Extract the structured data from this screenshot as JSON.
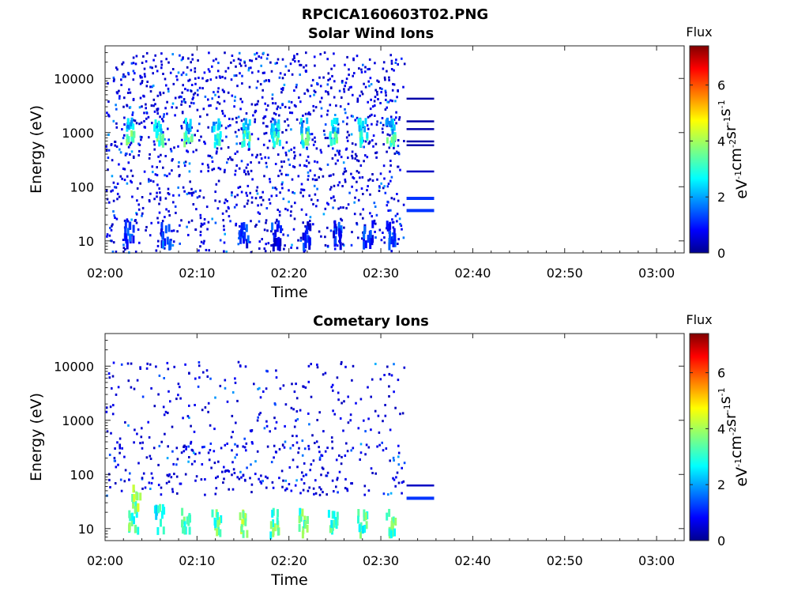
{
  "figure": {
    "title": "RPCICA160603T02.PNG"
  },
  "chart_data": [
    {
      "type": "heatmap",
      "title": "Solar Wind Ions",
      "xlabel": "Time",
      "ylabel": "Energy (eV)",
      "x_ticks": [
        "02:00",
        "02:10",
        "02:20",
        "02:30",
        "02:40",
        "02:50",
        "03:00"
      ],
      "x_range": [
        "02:00",
        "03:03"
      ],
      "y_scale": "log",
      "y_ticks": [
        10,
        100,
        1000,
        10000
      ],
      "y_tick_labels": [
        "10",
        "100",
        "1000",
        "10000"
      ],
      "y_range": [
        6,
        40000
      ],
      "colorbar": {
        "title": "Flux",
        "label": "eV-1cm-2sr-1s-1",
        "range": [
          0,
          7.4
        ],
        "ticks": [
          0,
          2,
          4,
          6
        ],
        "colormap": "jet"
      },
      "data_end_time": "02:32.5",
      "hot_spots": [
        {
          "time_min": 2.5,
          "energy_ev": 1300,
          "flux": 3.0
        },
        {
          "time_min": 2.7,
          "energy_ev": 750,
          "flux": 4.0
        },
        {
          "time_min": 5.7,
          "energy_ev": 1300,
          "flux": 3.0
        },
        {
          "time_min": 5.8,
          "energy_ev": 750,
          "flux": 4.0
        },
        {
          "time_min": 8.8,
          "energy_ev": 1300,
          "flux": 3.0
        },
        {
          "time_min": 8.9,
          "energy_ev": 750,
          "flux": 4.0
        },
        {
          "time_min": 12.0,
          "energy_ev": 1300,
          "flux": 3.0
        },
        {
          "time_min": 12.0,
          "energy_ev": 750,
          "flux": 3.8
        },
        {
          "time_min": 15.2,
          "energy_ev": 1300,
          "flux": 3.0
        },
        {
          "time_min": 15.2,
          "energy_ev": 750,
          "flux": 3.8
        },
        {
          "time_min": 18.4,
          "energy_ev": 1300,
          "flux": 3.0
        },
        {
          "time_min": 18.5,
          "energy_ev": 750,
          "flux": 3.8
        },
        {
          "time_min": 21.6,
          "energy_ev": 1300,
          "flux": 3.0
        },
        {
          "time_min": 21.6,
          "energy_ev": 750,
          "flux": 3.8
        },
        {
          "time_min": 24.8,
          "energy_ev": 1300,
          "flux": 3.0
        },
        {
          "time_min": 24.8,
          "energy_ev": 750,
          "flux": 3.8
        },
        {
          "time_min": 27.9,
          "energy_ev": 1300,
          "flux": 3.0
        },
        {
          "time_min": 28.0,
          "energy_ev": 750,
          "flux": 3.8
        },
        {
          "time_min": 30.9,
          "energy_ev": 1300,
          "flux": 3.0
        },
        {
          "time_min": 31.0,
          "energy_ev": 750,
          "flux": 3.8
        }
      ],
      "low_energy_bursts": [
        {
          "time_min": 2.5,
          "energy_ev": 10,
          "flux": 2.0
        },
        {
          "time_min": 6.5,
          "energy_ev": 10,
          "flux": 2.0
        },
        {
          "time_min": 15.0,
          "energy_ev": 10,
          "flux": 1.8
        },
        {
          "time_min": 18.5,
          "energy_ev": 10,
          "flux": 1.8
        },
        {
          "time_min": 21.8,
          "energy_ev": 10,
          "flux": 1.8
        },
        {
          "time_min": 25.2,
          "energy_ev": 10,
          "flux": 1.8
        },
        {
          "time_min": 28.5,
          "energy_ev": 10,
          "flux": 1.8
        },
        {
          "time_min": 31.0,
          "energy_ev": 10,
          "flux": 1.8
        }
      ],
      "lines_after_data": [
        {
          "energy_ev": 4200,
          "flux": 0.3
        },
        {
          "energy_ev": 1600,
          "flux": 0.3
        },
        {
          "energy_ev": 1150,
          "flux": 0.3
        },
        {
          "energy_ev": 680,
          "flux": 0.3
        },
        {
          "energy_ev": 580,
          "flux": 0.3
        },
        {
          "energy_ev": 190,
          "flux": 0.5
        },
        {
          "energy_ev": 62,
          "flux": 1.3
        },
        {
          "energy_ev": 37,
          "flux": 1.3
        }
      ]
    },
    {
      "type": "heatmap",
      "title": "Cometary Ions",
      "xlabel": "Time",
      "ylabel": "Energy (eV)",
      "x_ticks": [
        "02:00",
        "02:10",
        "02:20",
        "02:30",
        "02:40",
        "02:50",
        "03:00"
      ],
      "x_range": [
        "02:00",
        "03:03"
      ],
      "y_scale": "log",
      "y_ticks": [
        10,
        100,
        1000,
        10000
      ],
      "y_tick_labels": [
        "10",
        "100",
        "1000",
        "10000"
      ],
      "y_range": [
        6,
        40000
      ],
      "colorbar": {
        "title": "Flux",
        "label": "eV-1cm-2sr-1s-1",
        "range": [
          0,
          7.4
        ],
        "ticks": [
          0,
          2,
          4,
          6
        ],
        "colormap": "jet"
      },
      "data_end_time": "02:32.5",
      "low_energy_bursts": [
        {
          "time_min": 3.0,
          "energy_ev": 12,
          "flux": 4.0
        },
        {
          "time_min": 3.3,
          "energy_ev": 30,
          "flux": 4.5
        },
        {
          "time_min": 5.8,
          "energy_ev": 12,
          "flux": 3.5
        },
        {
          "time_min": 8.7,
          "energy_ev": 10,
          "flux": 4.0
        },
        {
          "time_min": 12.0,
          "energy_ev": 10,
          "flux": 4.0
        },
        {
          "time_min": 15.0,
          "energy_ev": 10,
          "flux": 4.7
        },
        {
          "time_min": 18.3,
          "energy_ev": 10,
          "flux": 4.0
        },
        {
          "time_min": 21.5,
          "energy_ev": 10,
          "flux": 4.0
        },
        {
          "time_min": 24.7,
          "energy_ev": 10,
          "flux": 4.0
        },
        {
          "time_min": 27.9,
          "energy_ev": 10,
          "flux": 4.0
        },
        {
          "time_min": 31.0,
          "energy_ev": 10,
          "flux": 4.0
        }
      ],
      "lines_after_data": [
        {
          "energy_ev": 62,
          "flux": 0.5
        },
        {
          "energy_ev": 37,
          "flux": 1.3
        }
      ]
    }
  ]
}
